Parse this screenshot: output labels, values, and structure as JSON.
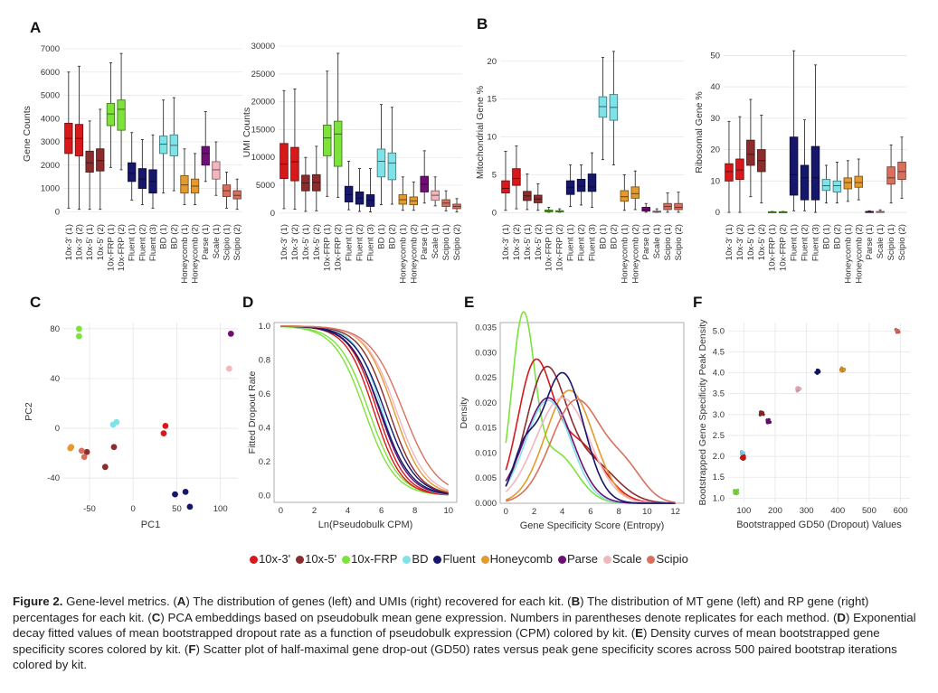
{
  "panels": {
    "A": "A",
    "B": "B",
    "C": "C",
    "D": "D",
    "E": "E",
    "F": "F"
  },
  "categories": [
    "10x-3' (1)",
    "10x-3' (2)",
    "10x-5' (1)",
    "10x-5' (2)",
    "10x-FRP (1)",
    "10x-FRP (2)",
    "Fluent (1)",
    "Fluent (2)",
    "Fluent (3)",
    "BD (1)",
    "BD (2)",
    "Honeycomb (1)",
    "Honeycomb (2)",
    "Parse (1)",
    "Scale (1)",
    "Scipio (1)",
    "Scipio (2)"
  ],
  "category_kits": [
    "10x-3'",
    "10x-3'",
    "10x-5'",
    "10x-5'",
    "10x-FRP",
    "10x-FRP",
    "Fluent",
    "Fluent",
    "Fluent",
    "BD",
    "BD",
    "Honeycomb",
    "Honeycomb",
    "Parse",
    "Scale",
    "Scipio",
    "Scipio"
  ],
  "legend": [
    {
      "label": "10x-3'",
      "color": "#d7191c"
    },
    {
      "label": "10x-5'",
      "color": "#8c2d2d"
    },
    {
      "label": "10x-FRP",
      "color": "#7de23a"
    },
    {
      "label": "BD",
      "color": "#7ee3e8"
    },
    {
      "label": "Fluent",
      "color": "#16166b"
    },
    {
      "label": "Honeycomb",
      "color": "#e39a2e"
    },
    {
      "label": "Parse",
      "color": "#6e0f73"
    },
    {
      "label": "Scale",
      "color": "#f2b6bf"
    },
    {
      "label": "Scipio",
      "color": "#d9705e"
    }
  ],
  "chart_data": [
    {
      "id": "A-left",
      "type": "box",
      "ylabel": "Gene Counts",
      "ylim": [
        -300,
        7000
      ],
      "yticks": [
        0,
        1000,
        2000,
        3000,
        4000,
        5000,
        6000,
        7000
      ],
      "boxes": [
        [
          150,
          2500,
          3150,
          3800,
          6000
        ],
        [
          100,
          2400,
          3150,
          3750,
          6250
        ],
        [
          100,
          1700,
          2100,
          2600,
          3900
        ],
        [
          100,
          1750,
          2200,
          2700,
          4400
        ],
        [
          1900,
          3700,
          4200,
          4650,
          6400
        ],
        [
          1800,
          3500,
          4400,
          4800,
          6800
        ],
        [
          500,
          1300,
          1650,
          2100,
          3400
        ],
        [
          300,
          1000,
          1400,
          1850,
          3100
        ],
        [
          150,
          800,
          1300,
          1800,
          3300
        ],
        [
          800,
          2500,
          2900,
          3250,
          4800
        ],
        [
          900,
          2400,
          2850,
          3300,
          4900
        ],
        [
          300,
          800,
          1150,
          1550,
          2700
        ],
        [
          300,
          800,
          1100,
          1400,
          2500
        ],
        [
          1300,
          2000,
          2500,
          2800,
          4300
        ],
        [
          700,
          1400,
          1800,
          2150,
          3000
        ],
        [
          150,
          650,
          900,
          1150,
          1700
        ],
        [
          100,
          550,
          700,
          900,
          1400
        ]
      ]
    },
    {
      "id": "A-right",
      "type": "box",
      "ylabel": "UMI Counts",
      "ylim": [
        -1000,
        30000
      ],
      "yticks": [
        0,
        5000,
        10000,
        15000,
        20000,
        25000,
        30000
      ],
      "boxes": [
        [
          800,
          6200,
          8800,
          12500,
          22000
        ],
        [
          700,
          5800,
          9200,
          11800,
          22300
        ],
        [
          300,
          4000,
          5400,
          6800,
          10000
        ],
        [
          400,
          4000,
          5500,
          6900,
          12000
        ],
        [
          3000,
          10300,
          13500,
          15800,
          25500
        ],
        [
          2800,
          8400,
          14200,
          16500,
          28700
        ],
        [
          600,
          2000,
          3300,
          4800,
          9300
        ],
        [
          300,
          1600,
          2700,
          3800,
          8000
        ],
        [
          200,
          1200,
          2300,
          3300,
          8000
        ],
        [
          1500,
          6500,
          9300,
          11500,
          19500
        ],
        [
          1600,
          6000,
          9000,
          10800,
          19000
        ],
        [
          500,
          1600,
          2400,
          3300,
          6500
        ],
        [
          500,
          1500,
          2200,
          2900,
          5600
        ],
        [
          1800,
          3800,
          5200,
          6600,
          11200
        ],
        [
          1300,
          2300,
          3200,
          4000,
          6500
        ],
        [
          400,
          1200,
          1800,
          2400,
          4000
        ],
        [
          200,
          800,
          1200,
          1600,
          2600
        ]
      ]
    },
    {
      "id": "B-left",
      "type": "box",
      "ylabel": "Mitochondrial Gene %",
      "ylim": [
        -0.8,
        22
      ],
      "yticks": [
        0,
        5,
        10,
        15,
        20
      ],
      "boxes": [
        [
          0.3,
          2.6,
          3.2,
          4.2,
          8.1
        ],
        [
          0.5,
          3.6,
          4.5,
          5.8,
          8.8
        ],
        [
          0.4,
          1.6,
          2.2,
          2.8,
          5.1
        ],
        [
          0.3,
          1.3,
          1.8,
          2.3,
          3.8
        ],
        [
          0.05,
          0.1,
          0.2,
          0.35,
          0.7
        ],
        [
          0.05,
          0.1,
          0.15,
          0.25,
          0.5
        ],
        [
          0.8,
          2.4,
          3.3,
          4.2,
          6.3
        ],
        [
          1.0,
          2.8,
          3.5,
          4.4,
          6.3
        ],
        [
          0.7,
          2.8,
          3.4,
          5.1,
          7.9
        ],
        [
          7.0,
          12.6,
          14.0,
          15.3,
          20.5
        ],
        [
          6.3,
          12.2,
          13.9,
          15.6,
          21.3
        ],
        [
          0.3,
          1.5,
          2.1,
          2.9,
          5.0
        ],
        [
          0.4,
          1.9,
          2.5,
          3.4,
          5.5
        ],
        [
          0.05,
          0.2,
          0.45,
          0.7,
          1.2
        ],
        [
          0.02,
          0.05,
          0.12,
          0.2,
          0.5
        ],
        [
          0.05,
          0.4,
          0.8,
          1.2,
          2.6
        ],
        [
          0.05,
          0.4,
          0.7,
          1.2,
          2.7
        ]
      ]
    },
    {
      "id": "B-right",
      "type": "box",
      "ylabel": "Ribosomal Gene %",
      "ylim": [
        -2,
        53
      ],
      "yticks": [
        0,
        10,
        20,
        30,
        40,
        50
      ],
      "boxes": [
        [
          0,
          10,
          13,
          15.5,
          29
        ],
        [
          0,
          10.5,
          13.5,
          17,
          30.5
        ],
        [
          5,
          15,
          18.5,
          23,
          36
        ],
        [
          3,
          13,
          16.5,
          20,
          31
        ],
        [
          0,
          0,
          0.1,
          0.2,
          0.3
        ],
        [
          0,
          0,
          0.1,
          0.2,
          0.3
        ],
        [
          0.5,
          5.5,
          12,
          24,
          51.5
        ],
        [
          0.5,
          4,
          11,
          15,
          29.5
        ],
        [
          0,
          4,
          11,
          21,
          47
        ],
        [
          3,
          7,
          8.5,
          10.5,
          15
        ],
        [
          3,
          6.5,
          8.5,
          10,
          16
        ],
        [
          3.5,
          7.5,
          9.5,
          11,
          16.5
        ],
        [
          4,
          8,
          9.5,
          11.5,
          17
        ],
        [
          0,
          0,
          0.1,
          0.3,
          0.5
        ],
        [
          0,
          0,
          0.1,
          0.3,
          0.8
        ],
        [
          3,
          9,
          11,
          14.5,
          21.5
        ],
        [
          4.5,
          10.5,
          13,
          16,
          24
        ]
      ]
    },
    {
      "id": "C",
      "type": "scatter",
      "xlabel": "PC1",
      "ylabel": "PC2",
      "xlim": [
        -80,
        120
      ],
      "ylim": [
        -58,
        85
      ],
      "xticks": [
        -50,
        0,
        50,
        100
      ],
      "yticks": [
        -40,
        0,
        40,
        80
      ],
      "points": [
        {
          "kit": "10x-FRP",
          "x": -62,
          "y": 80
        },
        {
          "kit": "10x-FRP",
          "x": -62,
          "y": 74
        },
        {
          "kit": "10x-3'",
          "x": 37,
          "y": 2
        },
        {
          "kit": "10x-3'",
          "x": 35,
          "y": -4
        },
        {
          "kit": "10x-5'",
          "x": -22,
          "y": -15
        },
        {
          "kit": "10x-5'",
          "x": -32,
          "y": -31
        },
        {
          "kit": "10x-5'",
          "x": -53,
          "y": -19
        },
        {
          "kit": "Honeycomb",
          "x": -72,
          "y": -16
        },
        {
          "kit": "Honeycomb",
          "x": -71,
          "y": -15
        },
        {
          "kit": "Scipio",
          "x": -56,
          "y": -23
        },
        {
          "kit": "Scipio",
          "x": -59,
          "y": -18
        },
        {
          "kit": "BD",
          "x": -23,
          "y": 3
        },
        {
          "kit": "BD",
          "x": -19,
          "y": 5
        },
        {
          "kit": "Fluent",
          "x": 48,
          "y": -53
        },
        {
          "kit": "Fluent",
          "x": 60,
          "y": -51
        },
        {
          "kit": "Fluent",
          "x": 65,
          "y": -63
        },
        {
          "kit": "Parse",
          "x": 112,
          "y": 76
        },
        {
          "kit": "Scale",
          "x": 110,
          "y": 48
        }
      ]
    },
    {
      "id": "D",
      "type": "line",
      "xlabel": "Ln(Pseudobulk CPM)",
      "ylabel": "Fitted Dropout Rate",
      "xlim": [
        -0.4,
        10.5
      ],
      "ylim": [
        -0.04,
        1.02
      ],
      "xticks": [
        0,
        2,
        4,
        6,
        8,
        10
      ],
      "yticks": [
        0.0,
        0.2,
        0.4,
        0.6,
        0.8,
        1.0
      ],
      "series": [
        {
          "name": "10x-FRP",
          "k": 1.1,
          "x0": 5.0
        },
        {
          "name": "10x-FRP",
          "k": 1.1,
          "x0": 5.25
        },
        {
          "name": "10x-3'",
          "k": 1.2,
          "x0": 5.55
        },
        {
          "name": "10x-3'",
          "k": 1.2,
          "x0": 5.75
        },
        {
          "name": "BD",
          "k": 1.25,
          "x0": 6.05
        },
        {
          "name": "Parse",
          "k": 1.15,
          "x0": 5.9
        },
        {
          "name": "Fluent",
          "k": 1.1,
          "x0": 5.95
        },
        {
          "name": "Fluent",
          "k": 1.1,
          "x0": 6.2
        },
        {
          "name": "10x-5'",
          "k": 1.15,
          "x0": 6.45
        },
        {
          "name": "Honeycomb",
          "k": 1.15,
          "x0": 6.75
        },
        {
          "name": "Scale",
          "k": 1.1,
          "x0": 6.9
        },
        {
          "name": "Scipio",
          "k": 1.0,
          "x0": 7.3
        }
      ]
    },
    {
      "id": "E",
      "type": "density",
      "xlabel": "Gene Specificity Score (Entropy)",
      "ylabel": "Density",
      "xlim": [
        -0.4,
        12.6
      ],
      "ylim": [
        0,
        0.036
      ],
      "xticks": [
        0,
        2,
        4,
        6,
        8,
        10,
        12
      ],
      "yticks": [
        0.0,
        0.005,
        0.01,
        0.015,
        0.02,
        0.025,
        0.03,
        0.035
      ],
      "series": [
        {
          "name": "10x-FRP",
          "peaks": [
            [
              1.2,
              0.035,
              0.8
            ],
            [
              3.5,
              0.01,
              1.5
            ]
          ]
        },
        {
          "name": "10x-3'",
          "peaks": [
            [
              2.0,
              0.0255,
              1.2
            ],
            [
              5.0,
              0.012,
              1.8
            ]
          ]
        },
        {
          "name": "10x-5'",
          "peaks": [
            [
              2.8,
              0.0255,
              1.4
            ],
            [
              6.0,
              0.008,
              1.8
            ]
          ]
        },
        {
          "name": "Honeycomb",
          "peaks": [
            [
              4.5,
              0.0225,
              1.7
            ]
          ]
        },
        {
          "name": "Scale",
          "peaks": [
            [
              4.0,
              0.021,
              1.9
            ]
          ]
        },
        {
          "name": "BD",
          "peaks": [
            [
              3.0,
              0.0205,
              1.6
            ]
          ]
        },
        {
          "name": "Parse",
          "peaks": [
            [
              3.0,
              0.021,
              1.7
            ]
          ]
        },
        {
          "name": "Fluent",
          "peaks": [
            [
              4.0,
              0.026,
              1.5
            ],
            [
              1.2,
              0.008,
              0.8
            ]
          ]
        },
        {
          "name": "Scipio",
          "peaks": [
            [
              5.0,
              0.0205,
              1.8
            ],
            [
              8.5,
              0.006,
              1.3
            ]
          ]
        }
      ]
    },
    {
      "id": "F",
      "type": "scatter",
      "xlabel": "Bootstrapped GD50 (Dropout) Values",
      "ylabel": "Bootstrapped Gene Specificity Peak Density",
      "xlim": [
        50,
        630
      ],
      "ylim": [
        0.9,
        5.2
      ],
      "xticks": [
        100,
        200,
        300,
        400,
        500,
        600
      ],
      "yticks": [
        1.0,
        1.5,
        2.0,
        2.5,
        3.0,
        3.5,
        4.0,
        4.5,
        5.0
      ],
      "clusters": [
        {
          "kit": "10x-FRP",
          "x": 75,
          "y": 1.15
        },
        {
          "kit": "BD",
          "x": 97,
          "y": 2.07
        },
        {
          "kit": "10x-3'",
          "x": 97,
          "y": 1.97
        },
        {
          "kit": "10x-5'",
          "x": 158,
          "y": 3.02
        },
        {
          "kit": "Parse",
          "x": 180,
          "y": 2.85
        },
        {
          "kit": "Scale",
          "x": 275,
          "y": 3.6
        },
        {
          "kit": "Fluent",
          "x": 335,
          "y": 4.02
        },
        {
          "kit": "Honeycomb",
          "x": 415,
          "y": 4.08
        },
        {
          "kit": "Scipio",
          "x": 590,
          "y": 5.01
        }
      ]
    }
  ],
  "caption": {
    "figure_label": "Figure 2.",
    "parts": [
      {
        "text": " Gene-level metrics. ("
      },
      {
        "bold": "A"
      },
      {
        "text": ") The distribution of genes (left) and UMIs (right) recovered for each kit. ("
      },
      {
        "bold": "B"
      },
      {
        "text": ") The distribution of MT gene (left) and RP gene (right) percentages for each kit. ("
      },
      {
        "bold": "C"
      },
      {
        "text": ") PCA embeddings based on pseudobulk mean gene expression. Numbers in parentheses denote replicates for each method. ("
      },
      {
        "bold": "D"
      },
      {
        "text": ") Exponential decay fitted values of mean bootstrapped dropout rate as a function of pseudobulk expression (CPM) colored by kit. ("
      },
      {
        "bold": "E"
      },
      {
        "text": ") Density curves of mean bootstrapped gene specificity scores colored by kit. ("
      },
      {
        "bold": "F"
      },
      {
        "text": ") Scatter plot of half-maximal gene drop-out (GD50) rates versus peak gene specificity scores across 500 paired bootstrap iterations colored by kit."
      }
    ]
  }
}
